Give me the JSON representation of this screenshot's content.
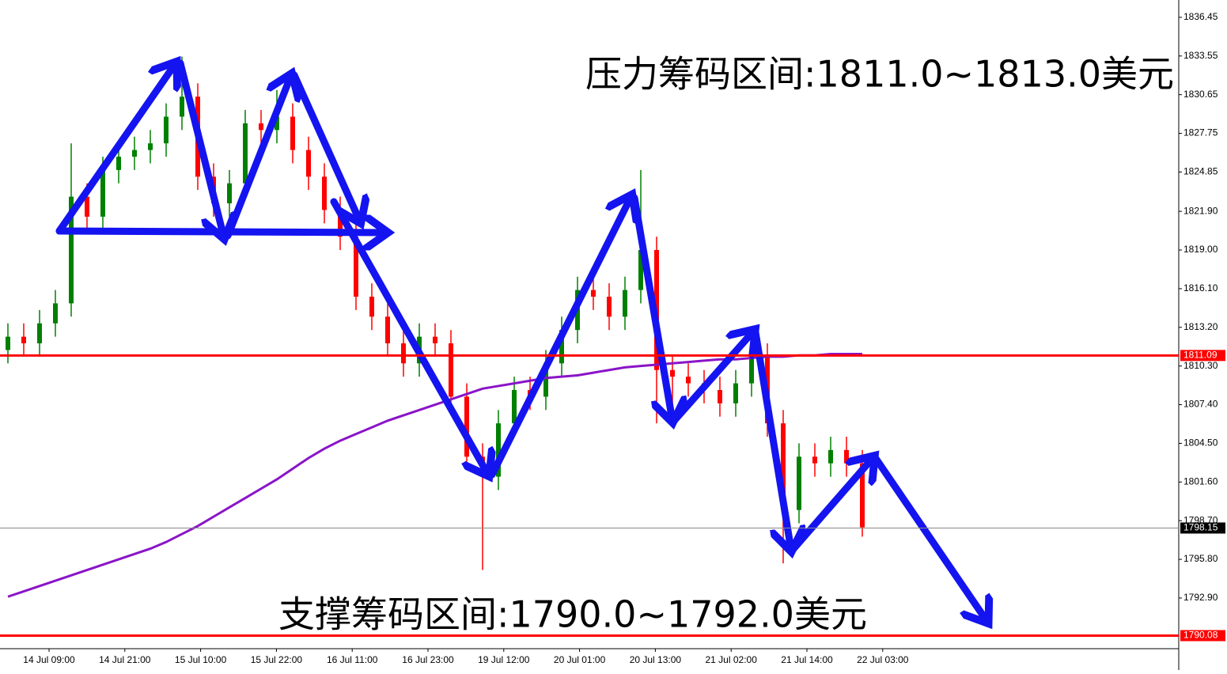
{
  "chart_data": {
    "type": "candlestick",
    "annotations": [
      "压力筹码区间:1811.0~1813.0美元",
      "支撑筹码区间:1790.0~1792.0美元"
    ],
    "xlabels": [
      "14 Jul 09:00",
      "14 Jul 21:00",
      "15 Jul 10:00",
      "15 Jul 22:00",
      "16 Jul 11:00",
      "16 Jul 23:00",
      "19 Jul 12:00",
      "20 Jul 01:00",
      "20 Jul 13:00",
      "21 Jul 02:00",
      "21 Jul 14:00",
      "22 Jul 03:00"
    ],
    "ylim": [
      1789.1,
      1837.75
    ],
    "yticks": [
      1836.45,
      1833.55,
      1830.65,
      1827.75,
      1824.85,
      {
        "value": 1821.9,
        "label": "1821.90"
      },
      {
        "value": 1819.0,
        "label": "1819.00"
      },
      {
        "value": 1816.1,
        "label": "1816.10"
      },
      {
        "value": 1813.2,
        "label": "1813.20"
      },
      {
        "value": 1810.3,
        "label": "1810.30"
      },
      {
        "value": 1807.4,
        "label": "1807.40"
      },
      {
        "value": 1804.5,
        "label": "1804.50"
      },
      {
        "value": 1801.6,
        "label": "1801.60"
      },
      {
        "value": 1798.7,
        "label": "1798.70"
      },
      {
        "value": 1795.8,
        "label": "1795.80"
      },
      {
        "value": 1792.9,
        "label": "1792.90"
      }
    ],
    "up_color": "#008000",
    "down_color": "#ff0000",
    "open": [
      1811.5,
      1812.5,
      1812,
      1813.5,
      1815,
      1823,
      1821.5,
      1825,
      1826,
      1826.5,
      1827,
      1829,
      1830.5,
      1824.5,
      1822.5,
      1824,
      1828.5,
      1828,
      1829,
      1826.5,
      1824.5,
      1822,
      1820,
      1815.5,
      1814,
      1812,
      1810.5,
      1812.5,
      1812,
      1808,
      1803.5,
      1802,
      1806,
      1808.5,
      1808,
      1810.5,
      1813,
      1816,
      1815.5,
      1814,
      1816,
      1819,
      1810,
      1809.5,
      1809,
      1808.5,
      1807.5,
      1809,
      1811,
      1806,
      1799.5,
      1803.5,
      1803,
      1804,
      1803
    ],
    "high": [
      1813.5,
      1813.5,
      1814.5,
      1816,
      1827,
      1824,
      1826,
      1827,
      1827.5,
      1828,
      1830,
      1833.5,
      1831.5,
      1825.5,
      1825,
      1829.5,
      1829.5,
      1831,
      1830,
      1827.5,
      1825.5,
      1823,
      1821,
      1816.5,
      1815,
      1813,
      1813.5,
      1813.5,
      1813,
      1809,
      1804.5,
      1807,
      1809.5,
      1809.5,
      1811.5,
      1814,
      1817,
      1817,
      1816.5,
      1817,
      1825,
      1820,
      1811,
      1810.5,
      1810,
      1809.5,
      1810,
      1812,
      1812,
      1807,
      1804.5,
      1804.5,
      1805,
      1805,
      1804
    ],
    "low": [
      1810.5,
      1811,
      1811,
      1812.5,
      1814,
      1820.5,
      1820.5,
      1824,
      1825,
      1825.5,
      1826,
      1828,
      1823.5,
      1821.5,
      1821.5,
      1823,
      1827,
      1827,
      1825.5,
      1823.5,
      1821,
      1819,
      1814.5,
      1813,
      1811,
      1809.5,
      1809.5,
      1811,
      1807,
      1802.5,
      1795,
      1801,
      1805,
      1807,
      1807,
      1809.5,
      1812,
      1814.5,
      1813,
      1813,
      1815,
      1806,
      1806.5,
      1808,
      1807.5,
      1806.5,
      1806.5,
      1808,
      1805,
      1795.5,
      1798.5,
      1802,
      1802,
      1802,
      1797.5
    ],
    "close": [
      1812.5,
      1812,
      1813.5,
      1815,
      1823,
      1821.5,
      1825,
      1826,
      1826.5,
      1827,
      1829,
      1830.5,
      1824.5,
      1822.5,
      1824,
      1828.5,
      1828,
      1829,
      1826.5,
      1824.5,
      1822,
      1820,
      1815.5,
      1814,
      1812,
      1810.5,
      1812.5,
      1812,
      1808,
      1803.5,
      1802,
      1806,
      1808.5,
      1808,
      1810.5,
      1813,
      1816,
      1815.5,
      1814,
      1816,
      1819,
      1810,
      1809.5,
      1809,
      1808.5,
      1807.5,
      1809,
      1811,
      1806,
      1799.5,
      1803.5,
      1803,
      1804,
      1803,
      1798.2
    ],
    "series": [
      {
        "color": "#8a14c8",
        "values": [
          1793.0,
          1793.4,
          1793.8,
          1794.2,
          1794.6,
          1795.0,
          1795.4,
          1795.8,
          1796.2,
          1796.6,
          1797.1,
          1797.7,
          1798.3,
          1799.0,
          1799.7,
          1800.4,
          1801.1,
          1801.8,
          1802.6,
          1803.4,
          1804.1,
          1804.7,
          1805.2,
          1805.7,
          1806.2,
          1806.6,
          1807.0,
          1807.4,
          1807.8,
          1808.2,
          1808.6,
          1808.8,
          1809.0,
          1809.2,
          1809.4,
          1809.5,
          1809.6,
          1809.8,
          1810.0,
          1810.2,
          1810.3,
          1810.4,
          1810.5,
          1810.6,
          1810.7,
          1810.8,
          1810.8,
          1810.9,
          1811.0,
          1811.0,
          1811.1,
          1811.1,
          1811.2,
          1811.2,
          1811.2
        ]
      }
    ],
    "lines": [
      {
        "value": 1811.09,
        "color": "#ff0000"
      },
      {
        "value": 1798.15,
        "color": "#000000"
      },
      {
        "value": 1790.08,
        "color": "#ff0000"
      }
    ]
  }
}
